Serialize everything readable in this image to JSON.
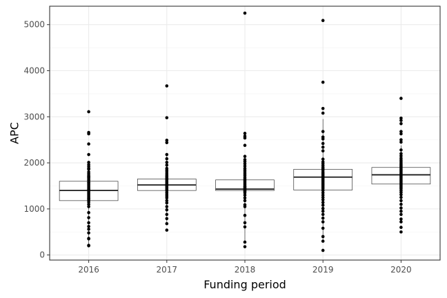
{
  "chart_data": {
    "type": "boxplot",
    "xlabel": "Funding period",
    "ylabel": "APC",
    "ylim": [
      -110,
      5400
    ],
    "yticks": [
      0,
      1000,
      2000,
      3000,
      4000,
      5000
    ],
    "y_minor_ticks": [
      500,
      1500,
      2500,
      3500,
      4500
    ],
    "categories": [
      "2016",
      "2017",
      "2018",
      "2019",
      "2020"
    ],
    "grid": true,
    "boxes": [
      {
        "category": "2016",
        "min": 200,
        "q1": 1180,
        "median": 1400,
        "q3": 1600,
        "max": 2000
      },
      {
        "category": "2017",
        "min": 700,
        "q1": 1400,
        "median": 1520,
        "q3": 1650,
        "max": 2150
      },
      {
        "category": "2018",
        "min": 300,
        "q1": 1400,
        "median": 1430,
        "q3": 1630,
        "max": 1980
      },
      {
        "category": "2019",
        "min": 300,
        "q1": 1410,
        "median": 1690,
        "q3": 1860,
        "max": 2950
      },
      {
        "category": "2020",
        "min": 1000,
        "q1": 1540,
        "median": 1740,
        "q3": 1900,
        "max": 2380
      }
    ],
    "points": [
      {
        "category": "2016",
        "values": [
          3110,
          2660,
          2630,
          2410,
          2180,
          2010,
          1960,
          1920,
          1880,
          1860,
          1800,
          1760,
          1720,
          1700,
          1680,
          1650,
          1620,
          1580,
          1560,
          1530,
          1500,
          1470,
          1440,
          1420,
          1390,
          1360,
          1330,
          1300,
          1270,
          1240,
          1220,
          1190,
          1150,
          1100,
          1050,
          920,
          810,
          700,
          620,
          560,
          480,
          360,
          350,
          210,
          200
        ]
      },
      {
        "category": "2017",
        "values": [
          3670,
          2980,
          2490,
          2440,
          2180,
          2090,
          2010,
          1950,
          1880,
          1840,
          1800,
          1760,
          1720,
          1690,
          1660,
          1640,
          1610,
          1580,
          1550,
          1530,
          1510,
          1490,
          1460,
          1430,
          1400,
          1360,
          1320,
          1280,
          1240,
          1180,
          1130,
          1050,
          980,
          880,
          790,
          680,
          540
        ]
      },
      {
        "category": "2018",
        "values": [
          5250,
          2640,
          2580,
          2540,
          2380,
          2140,
          2070,
          2030,
          1980,
          1930,
          1880,
          1840,
          1800,
          1760,
          1720,
          1680,
          1650,
          1620,
          1590,
          1560,
          1530,
          1500,
          1480,
          1460,
          1440,
          1420,
          1400,
          1380,
          1350,
          1300,
          1240,
          1180,
          1090,
          1050,
          860,
          700,
          610,
          280,
          180
        ]
      },
      {
        "category": "2019",
        "values": [
          5090,
          3750,
          3180,
          3080,
          2680,
          2560,
          2520,
          2420,
          2340,
          2260,
          2080,
          2020,
          1980,
          1940,
          1900,
          1870,
          1840,
          1800,
          1770,
          1740,
          1710,
          1680,
          1650,
          1620,
          1590,
          1560,
          1530,
          1500,
          1470,
          1440,
          1400,
          1350,
          1300,
          1250,
          1200,
          1140,
          1080,
          1010,
          950,
          880,
          800,
          720,
          580,
          400,
          300,
          100
        ]
      },
      {
        "category": "2020",
        "values": [
          3400,
          2970,
          2920,
          2850,
          2680,
          2630,
          2500,
          2450,
          2280,
          2200,
          2150,
          2100,
          2060,
          2020,
          1980,
          1950,
          1920,
          1890,
          1860,
          1830,
          1800,
          1770,
          1740,
          1710,
          1680,
          1650,
          1620,
          1590,
          1560,
          1530,
          1500,
          1470,
          1440,
          1400,
          1360,
          1310,
          1250,
          1180,
          1100,
          1020,
          950,
          880,
          780,
          720,
          600,
          500
        ]
      }
    ]
  }
}
